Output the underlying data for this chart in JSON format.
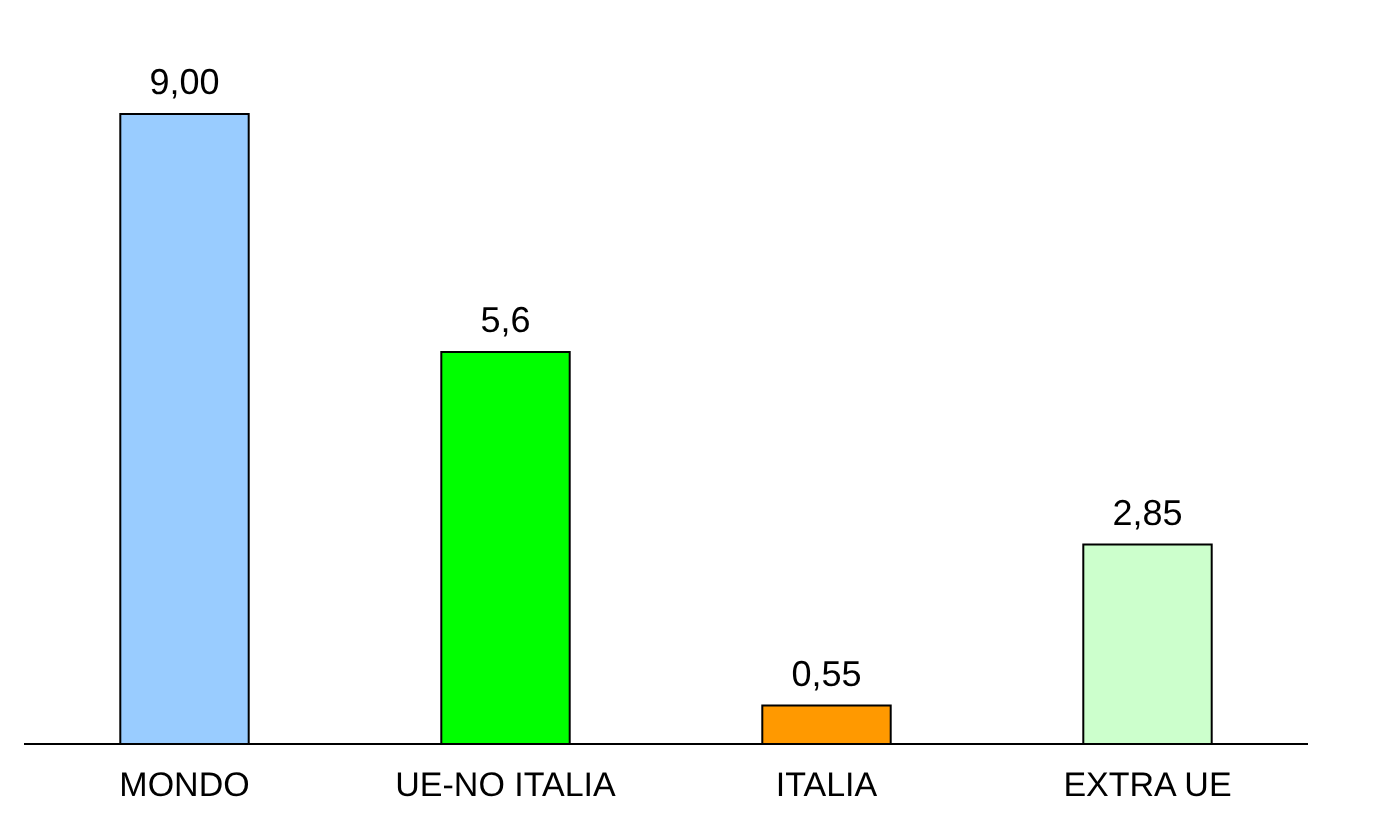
{
  "chart_data": {
    "type": "bar",
    "categories": [
      "MONDO",
      "UE-NO ITALIA",
      "ITALIA",
      "EXTRA UE"
    ],
    "values": [
      9.0,
      5.6,
      0.55,
      2.85
    ],
    "colors": [
      "#99ccff",
      "#00ff00",
      "#ff9900",
      "#ccffcc"
    ],
    "value_labels": [
      "9,00",
      "5,6",
      "0,55",
      "2,85"
    ]
  }
}
